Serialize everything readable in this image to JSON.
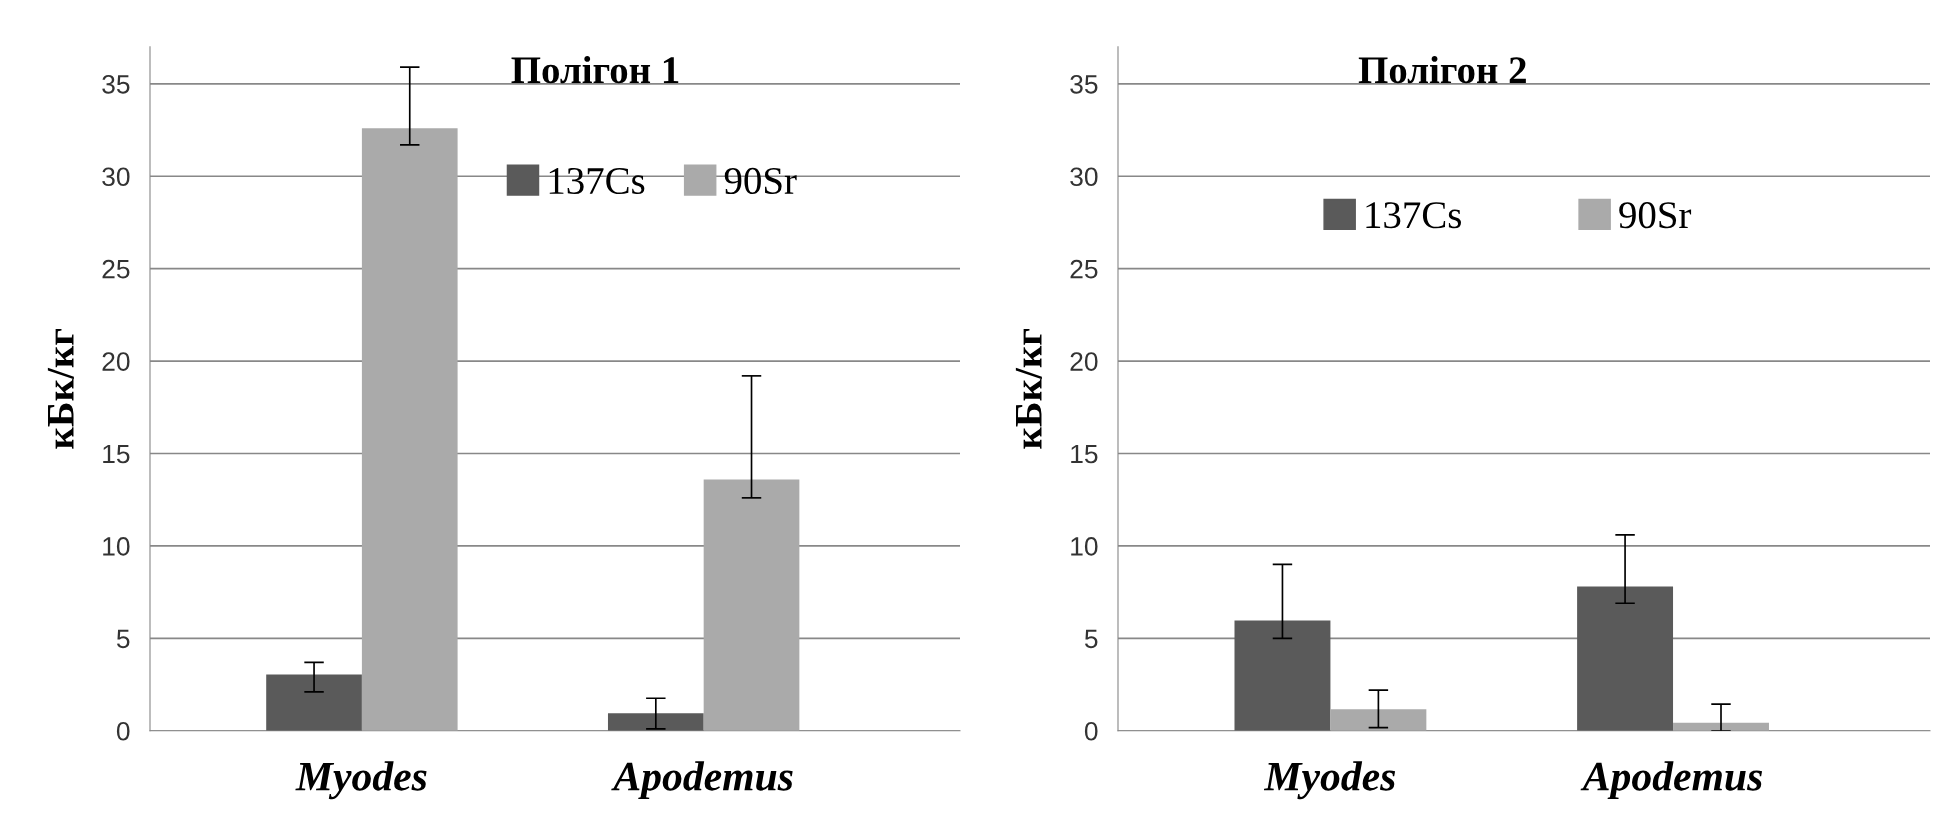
{
  "chart_data": [
    {
      "type": "bar",
      "title": "Полігон 1",
      "ylabel": "кБк/кг",
      "categories": [
        "Myodes",
        "Apodemus"
      ],
      "series": [
        {
          "name": "137Cs",
          "color": "#5a5a5a",
          "values": [
            3.05,
            0.95
          ],
          "errors": [
            [
              2.1,
              3.7
            ],
            [
              0.1,
              1.76
            ]
          ]
        },
        {
          "name": "90Sr",
          "color": "#aaaaaa",
          "values": [
            32.6,
            13.6
          ],
          "errors": [
            [
              31.7,
              35.9
            ],
            [
              12.6,
              19.2
            ]
          ]
        }
      ],
      "ylim": [
        0,
        37
      ],
      "yticks": [
        0,
        5,
        10,
        15,
        20,
        25,
        30,
        35
      ],
      "grid": "y",
      "legend": "top right"
    },
    {
      "type": "bar",
      "title": "Полігон 2",
      "ylabel": "кБк/кг",
      "categories": [
        "Myodes",
        "Apodemus"
      ],
      "series": [
        {
          "name": "137Cs",
          "color": "#5a5a5a",
          "values": [
            5.96,
            7.8
          ],
          "errors": [
            [
              5.0,
              9.0
            ],
            [
              6.9,
              10.6
            ]
          ]
        },
        {
          "name": "90Sr",
          "color": "#aaaaaa",
          "values": [
            1.17,
            0.44
          ],
          "errors": [
            [
              0.17,
              2.2
            ],
            [
              0.0,
              1.44
            ]
          ]
        }
      ],
      "ylim": [
        0,
        37
      ],
      "yticks": [
        0,
        5,
        10,
        15,
        20,
        25,
        30,
        35
      ],
      "grid": "y",
      "legend": "top"
    }
  ]
}
